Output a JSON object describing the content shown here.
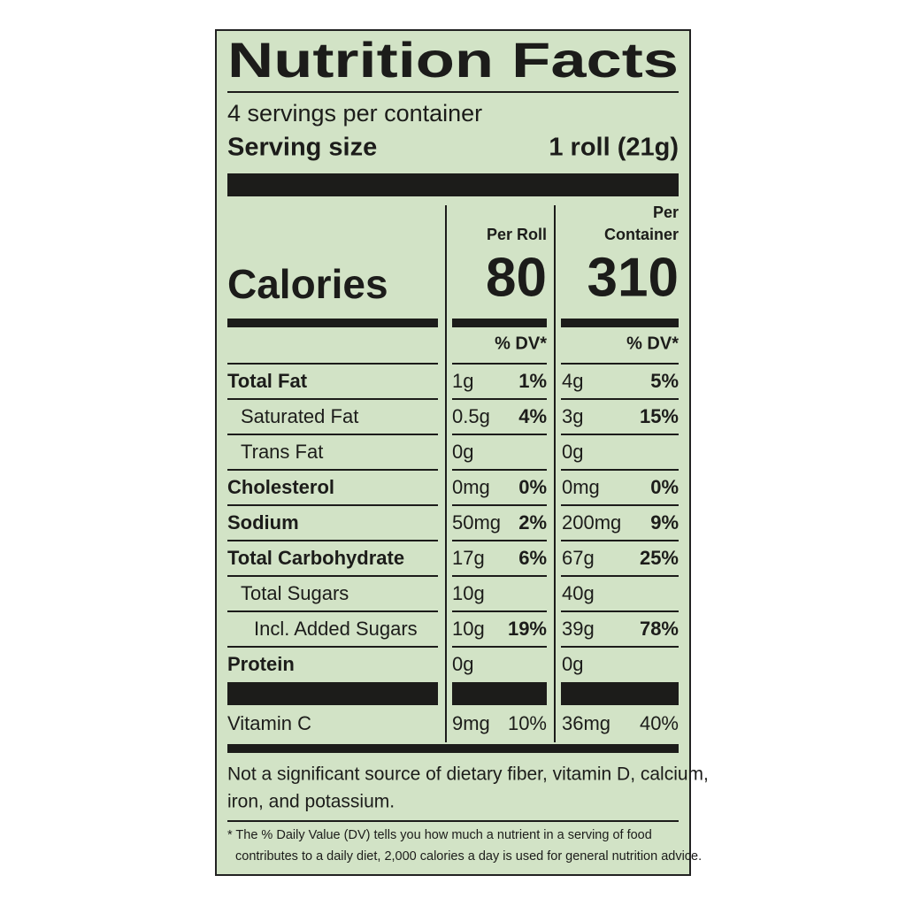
{
  "label": {
    "title": "Nutrition Facts",
    "servings": "4 servings per container",
    "serving_size": {
      "label": "Serving size",
      "value": "1 roll (21g)"
    },
    "calories": {
      "label": "Calories",
      "col1_header": [
        "Per Roll"
      ],
      "col2_header": [
        "Per",
        "Container"
      ],
      "col1_value": "80",
      "col2_value": "310",
      "dv_header": "% DV*"
    },
    "rows": [
      {
        "name": "Total Fat",
        "amt1": "1g",
        "dv1": "1%",
        "amt2": "4g",
        "dv2": "5%",
        "bold": true,
        "indent": 0
      },
      {
        "name": "Saturated Fat",
        "amt1": "0.5g",
        "dv1": "4%",
        "amt2": "3g",
        "dv2": "15%",
        "bold": false,
        "indent": 1
      },
      {
        "name": "Trans Fat",
        "amt1": "0g",
        "amt2": "0g",
        "bold": false,
        "indent": 1
      },
      {
        "name": "Cholesterol",
        "amt1": "0mg",
        "dv1": "0%",
        "amt2": "0mg",
        "dv2": "0%",
        "bold": true,
        "indent": 0
      },
      {
        "name": "Sodium",
        "amt1": "50mg",
        "dv1": "2%",
        "amt2": "200mg",
        "dv2": "9%",
        "bold": true,
        "indent": 0
      },
      {
        "name": "Total Carbohydrate",
        "amt1": "17g",
        "dv1": "6%",
        "amt2": "67g",
        "dv2": "25%",
        "bold": true,
        "indent": 0
      },
      {
        "name": "Total Sugars",
        "amt1": "10g",
        "amt2": "40g",
        "bold": false,
        "indent": 1
      },
      {
        "name": "Incl. Added Sugars",
        "amt1": "10g",
        "dv1": "19%",
        "amt2": "39g",
        "dv2": "78%",
        "bold": false,
        "indent": 2
      },
      {
        "name": "Protein",
        "amt1": "0g",
        "amt2": "0g",
        "bold": true,
        "indent": 0
      }
    ],
    "vitamins": [
      {
        "name": "Vitamin C",
        "amt1": "9mg",
        "dv1": "10%",
        "amt2": "36mg",
        "dv2": "40%"
      }
    ],
    "note": [
      "Not a significant source of dietary fiber, vitamin D, calcium,",
      "iron, and potassium."
    ],
    "footnote": [
      "* The % Daily Value (DV) tells you how much a nutrient in a serving of food",
      "contributes to a daily diet, 2,000 calories a day is used for general nutrition advice."
    ]
  }
}
